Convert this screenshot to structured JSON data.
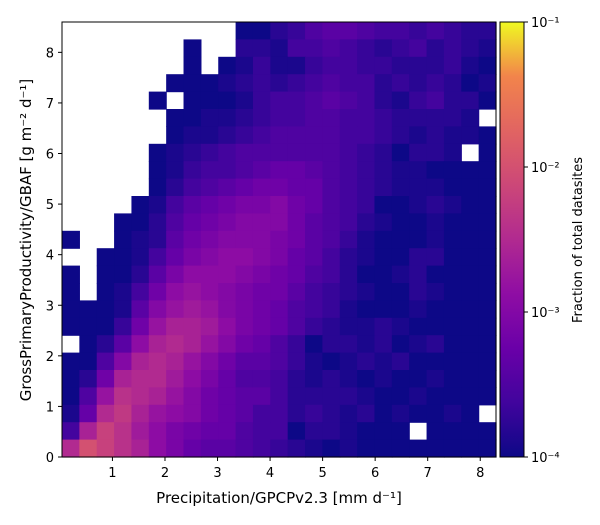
{
  "chart_data": {
    "type": "heatmap",
    "xlabel": "Precipitation/GPCPv2.3 [mm d⁻¹]",
    "ylabel": "GrossPrimaryProductivity/GBAF [g m⁻² d⁻¹]",
    "xlim": [
      0.04,
      8.3
    ],
    "ylim": [
      0,
      8.6
    ],
    "xticks": [
      "1",
      "2",
      "3",
      "4",
      "5",
      "6",
      "7",
      "8"
    ],
    "xtick_values": [
      1,
      2,
      3,
      4,
      5,
      6,
      7,
      8
    ],
    "yticks": [
      "0",
      "1",
      "2",
      "3",
      "4",
      "5",
      "6",
      "7",
      "8"
    ],
    "ytick_values": [
      0,
      1,
      2,
      3,
      4,
      5,
      6,
      7,
      8
    ],
    "colorbar": {
      "label": "Fraction of total datasites",
      "scale": "log",
      "range": [
        0.0001,
        0.1
      ],
      "ticks": [
        "10⁻⁴",
        "10⁻³",
        "10⁻²",
        "10⁻¹"
      ],
      "tick_values": [
        0.0001,
        0.001,
        0.01,
        0.1
      ],
      "colormap": "plasma"
    },
    "grid": {
      "nx": 25,
      "ny": 25,
      "row_order": "top-to-bottom",
      "value_units": "log10(fraction of total datasites)",
      "log10_fraction": [
        [
          null,
          null,
          null,
          null,
          null,
          null,
          null,
          null,
          null,
          null,
          -4.0,
          -4.0,
          -3.8,
          -3.7,
          -3.5,
          -3.4,
          -3.4,
          -3.5,
          -3.6,
          -3.6,
          -3.7,
          -3.6,
          -3.7,
          -3.8,
          -3.8
        ],
        [
          null,
          null,
          null,
          null,
          null,
          null,
          null,
          -4.0,
          null,
          null,
          -3.8,
          -3.8,
          -3.9,
          -3.6,
          -3.6,
          -3.5,
          -3.6,
          -3.7,
          -3.8,
          -3.7,
          -3.6,
          -3.8,
          -3.7,
          -3.8,
          -3.9
        ],
        [
          null,
          null,
          null,
          null,
          null,
          null,
          null,
          -4.0,
          null,
          -4.0,
          -3.9,
          -3.7,
          -3.9,
          -3.9,
          -3.7,
          -3.6,
          -3.6,
          -3.7,
          -3.7,
          -3.8,
          -3.8,
          -3.8,
          -3.7,
          -3.9,
          -4.0
        ],
        [
          null,
          null,
          null,
          null,
          null,
          null,
          -4.0,
          -4.0,
          -4.0,
          -3.9,
          -3.8,
          -3.7,
          -3.8,
          -3.7,
          -3.6,
          -3.5,
          -3.6,
          -3.6,
          -3.8,
          -3.7,
          -3.8,
          -3.7,
          -3.8,
          -4.0,
          -3.9
        ],
        [
          null,
          null,
          null,
          null,
          null,
          -4.0,
          null,
          -4.0,
          -4.0,
          -4.0,
          -3.9,
          -3.7,
          -3.6,
          -3.6,
          -3.5,
          -3.4,
          -3.5,
          -3.6,
          -3.8,
          -3.9,
          -3.7,
          -3.6,
          -3.8,
          -3.8,
          -4.0
        ],
        [
          null,
          null,
          null,
          null,
          null,
          null,
          -4.0,
          -4.0,
          -3.9,
          -3.9,
          -3.8,
          -3.7,
          -3.6,
          -3.6,
          -3.5,
          -3.5,
          -3.6,
          -3.6,
          -3.7,
          -3.8,
          -3.8,
          -3.8,
          -3.8,
          -3.9,
          null
        ],
        [
          null,
          null,
          null,
          null,
          null,
          null,
          -4.0,
          -3.9,
          -3.9,
          -3.8,
          -3.7,
          -3.6,
          -3.5,
          -3.5,
          -3.5,
          -3.5,
          -3.6,
          -3.6,
          -3.7,
          -3.8,
          -3.9,
          -3.8,
          -3.9,
          -3.9,
          -4.0
        ],
        [
          null,
          null,
          null,
          null,
          null,
          -4.0,
          -3.9,
          -3.8,
          -3.7,
          -3.6,
          -3.5,
          -3.5,
          -3.5,
          -3.5,
          -3.5,
          -3.5,
          -3.6,
          -3.7,
          -3.8,
          -4.0,
          -3.8,
          -3.8,
          -3.9,
          null,
          -4.0
        ],
        [
          null,
          null,
          null,
          null,
          null,
          -4.0,
          -3.9,
          -3.7,
          -3.6,
          -3.6,
          -3.5,
          -3.4,
          -3.3,
          -3.3,
          -3.4,
          -3.5,
          -3.6,
          -3.7,
          -3.8,
          -3.9,
          -3.9,
          -4.0,
          -4.0,
          -4.0,
          -4.0
        ],
        [
          null,
          null,
          null,
          null,
          null,
          -4.0,
          -3.8,
          -3.6,
          -3.5,
          -3.4,
          -3.3,
          -3.2,
          -3.2,
          -3.3,
          -3.3,
          -3.5,
          -3.6,
          -3.7,
          -3.8,
          -3.9,
          -3.9,
          -3.9,
          -4.0,
          -4.0,
          -4.0
        ],
        [
          null,
          null,
          null,
          null,
          -4.0,
          -3.9,
          -3.6,
          -3.4,
          -3.3,
          -3.2,
          -3.1,
          -3.1,
          -3.0,
          -3.2,
          -3.3,
          -3.5,
          -3.6,
          -3.7,
          -4.0,
          -4.0,
          -3.9,
          -3.8,
          -3.9,
          -4.0,
          -4.0
        ],
        [
          null,
          null,
          null,
          -4.0,
          -4.0,
          -3.8,
          -3.5,
          -3.3,
          -3.2,
          -3.1,
          -3.0,
          -3.0,
          -3.0,
          -3.2,
          -3.4,
          -3.5,
          -3.6,
          -3.8,
          -3.9,
          -4.0,
          -4.0,
          -3.9,
          -4.0,
          -4.0,
          -4.0
        ],
        [
          -4.0,
          null,
          null,
          -4.0,
          -3.9,
          -3.8,
          -3.4,
          -3.2,
          -3.1,
          -3.0,
          -3.0,
          -3.0,
          -3.1,
          -3.2,
          -3.4,
          -3.5,
          -3.7,
          -3.9,
          -4.0,
          -4.0,
          -4.0,
          -3.9,
          -4.0,
          -4.0,
          -4.0
        ],
        [
          null,
          null,
          -4.0,
          -4.0,
          -3.9,
          -3.6,
          -3.3,
          -3.1,
          -3.0,
          -2.9,
          -2.9,
          -3.0,
          -3.1,
          -3.3,
          -3.4,
          -3.6,
          -3.8,
          -3.9,
          -4.0,
          -4.0,
          -3.8,
          -3.8,
          -4.0,
          -4.0,
          -4.0
        ],
        [
          -4.0,
          null,
          -4.0,
          -4.0,
          -3.8,
          -3.4,
          -3.1,
          -2.9,
          -2.9,
          -2.9,
          -3.0,
          -3.1,
          -3.2,
          -3.3,
          -3.5,
          -3.6,
          -3.8,
          -4.0,
          -4.0,
          -3.9,
          -3.8,
          -4.0,
          -4.0,
          -4.0,
          -4.0
        ],
        [
          -4.0,
          null,
          -4.0,
          -3.9,
          -3.6,
          -3.2,
          -2.9,
          -2.8,
          -2.9,
          -3.0,
          -3.1,
          -3.2,
          -3.2,
          -3.4,
          -3.6,
          -3.7,
          -3.8,
          -3.9,
          -4.0,
          -4.0,
          -3.8,
          -3.9,
          -4.0,
          -4.0,
          -4.0
        ],
        [
          -4.0,
          -4.0,
          -4.0,
          -3.9,
          -3.4,
          -3.0,
          -2.8,
          -2.7,
          -2.8,
          -3.0,
          -3.1,
          -3.2,
          -3.3,
          -3.5,
          -3.6,
          -3.7,
          -3.9,
          -4.0,
          -4.0,
          -4.0,
          -3.9,
          -4.0,
          -4.0,
          -4.0,
          -4.0
        ],
        [
          -4.0,
          -4.0,
          -4.0,
          -3.7,
          -3.2,
          -2.8,
          -2.6,
          -2.6,
          -2.7,
          -2.9,
          -3.1,
          -3.2,
          -3.3,
          -3.5,
          -3.7,
          -3.8,
          -3.9,
          -3.9,
          -3.8,
          -3.9,
          -4.0,
          -4.0,
          -4.0,
          -4.0,
          -4.0
        ],
        [
          null,
          -4.0,
          -3.8,
          -3.4,
          -2.9,
          -2.6,
          -2.5,
          -2.6,
          -2.8,
          -3.0,
          -3.2,
          -3.3,
          -3.5,
          -3.7,
          -4.0,
          -3.8,
          -3.8,
          -3.9,
          -3.8,
          -4.0,
          -3.9,
          -3.8,
          -4.0,
          -4.0,
          -4.0
        ],
        [
          -4.0,
          -4.0,
          -3.5,
          -3.0,
          -2.6,
          -2.5,
          -2.6,
          -2.8,
          -3.0,
          -3.2,
          -3.4,
          -3.4,
          -3.5,
          -3.7,
          -3.9,
          -4.0,
          -3.9,
          -3.8,
          -3.9,
          -3.8,
          -4.0,
          -4.0,
          -4.0,
          -4.0,
          -4.0
        ],
        [
          -4.0,
          -3.8,
          -3.2,
          -2.6,
          -2.5,
          -2.5,
          -2.7,
          -2.9,
          -3.1,
          -3.3,
          -3.5,
          -3.5,
          -3.6,
          -3.8,
          -3.9,
          -3.8,
          -3.9,
          -4.0,
          -3.9,
          -4.0,
          -4.0,
          -3.9,
          -4.0,
          -4.0,
          -4.0
        ],
        [
          -4.0,
          -3.5,
          -2.8,
          -2.4,
          -2.5,
          -2.6,
          -2.8,
          -3.0,
          -3.2,
          -3.3,
          -3.4,
          -3.4,
          -3.6,
          -3.8,
          -3.8,
          -3.8,
          -3.8,
          -3.9,
          -4.0,
          -4.0,
          -3.9,
          -4.0,
          -4.0,
          -4.0,
          -4.0
        ],
        [
          -3.9,
          -3.3,
          -2.5,
          -2.3,
          -2.6,
          -2.8,
          -2.9,
          -3.0,
          -3.2,
          -3.3,
          -3.4,
          -3.6,
          -3.6,
          -3.8,
          -3.7,
          -3.8,
          -3.9,
          -3.8,
          -4.0,
          -3.9,
          -4.0,
          -4.0,
          -3.9,
          -4.0,
          null
        ],
        [
          -3.6,
          -2.6,
          -2.2,
          -2.4,
          -2.7,
          -2.9,
          -3.1,
          -3.2,
          -3.3,
          -3.3,
          -3.5,
          -3.6,
          -3.6,
          -4.0,
          -3.8,
          -3.8,
          -3.9,
          -4.0,
          -4.0,
          -4.0,
          null,
          -4.0,
          -4.0,
          -4.0,
          -4.0
        ],
        [
          -2.5,
          -2.0,
          -2.2,
          -2.4,
          -2.6,
          -2.9,
          -3.1,
          -3.3,
          -3.4,
          -3.4,
          -3.5,
          -3.6,
          -3.7,
          -3.8,
          -3.9,
          -4.0,
          -3.9,
          -4.0,
          -4.0,
          -4.0,
          -4.0,
          -4.0,
          -4.0,
          -4.0,
          -4.0
        ]
      ]
    }
  }
}
